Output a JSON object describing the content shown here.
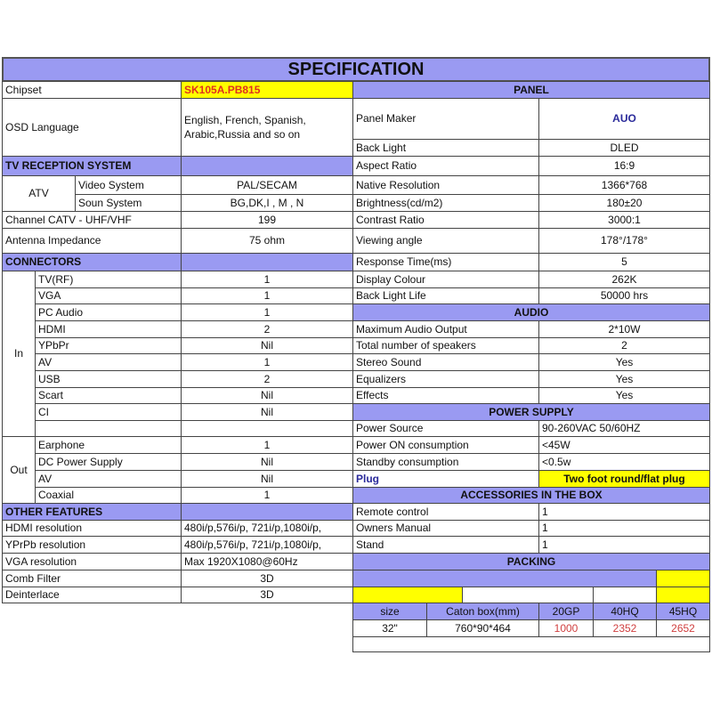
{
  "title": "SPECIFICATION",
  "colors": {
    "header": "#9a9af2",
    "highlight": "#ffff00",
    "chipset_text": "#e0301e",
    "accent_text": "#2a2a9a",
    "qty_text": "#d04040"
  },
  "left": {
    "chipset": {
      "label": "Chipset",
      "value": "SK105A.PB815"
    },
    "osd": {
      "label": "OSD Language",
      "value": "English, French, Spanish, Arabic,Russia and so on"
    },
    "tv_reception": "TV RECEPTION SYSTEM",
    "atv": {
      "label": "ATV",
      "video_label": "Video System",
      "video_value": "PAL/SECAM",
      "sound_label": "Soun System",
      "sound_value": "BG,DK,I , M , N"
    },
    "channel": {
      "label": "Channel CATV - UHF/VHF",
      "value": "199"
    },
    "antenna": {
      "label": "Antenna Impedance",
      "value": "75 ohm"
    },
    "connectors": "CONNECTORS",
    "in_label": "In",
    "in_rows": [
      [
        "TV(RF)",
        "1"
      ],
      [
        "VGA",
        "1"
      ],
      [
        "PC Audio",
        "1"
      ],
      [
        "HDMI",
        "2"
      ],
      [
        "YPbPr",
        "Nil"
      ],
      [
        "AV",
        "1"
      ],
      [
        "USB",
        "2"
      ],
      [
        "Scart",
        "Nil"
      ],
      [
        "CI",
        "Nil"
      ]
    ],
    "out_label": "Out",
    "out_rows": [
      [
        "Earphone",
        "1"
      ],
      [
        "DC Power Supply",
        "Nil"
      ],
      [
        "AV",
        "Nil"
      ],
      [
        "Coaxial",
        "1"
      ]
    ],
    "other_features": "OTHER FEATURES",
    "other_rows": [
      [
        "HDMI resolution",
        "480i/p,576i/p, 721i/p,1080i/p,"
      ],
      [
        "YPrPb resolution",
        "480i/p,576i/p, 721i/p,1080i/p,"
      ],
      [
        "VGA resolution",
        "Max 1920X1080@60Hz"
      ],
      [
        "Comb Filter",
        "3D"
      ],
      [
        "Deinterlace",
        "3D"
      ]
    ]
  },
  "right": {
    "panel": "PANEL",
    "panel_rows": [
      [
        "Panel Maker",
        "AUO"
      ],
      [
        "Back Light",
        "DLED"
      ],
      [
        "Aspect Ratio",
        "16:9"
      ],
      [
        "Native Resolution",
        "1366*768"
      ],
      [
        "Brightness(cd/m2)",
        "180±20"
      ],
      [
        "Contrast Ratio",
        "3000:1"
      ],
      [
        "Viewing angle",
        "178°/178°"
      ],
      [
        "Response Time(ms)",
        "5"
      ],
      [
        "Display Colour",
        "262K"
      ],
      [
        "Back Light Life",
        "50000 hrs"
      ]
    ],
    "audio": "AUDIO",
    "audio_rows": [
      [
        "Maximum Audio Output",
        "2*10W"
      ],
      [
        "Total number of speakers",
        "2"
      ],
      [
        "Stereo Sound",
        "Yes"
      ],
      [
        "Equalizers",
        "Yes"
      ],
      [
        "Effects",
        "Yes"
      ]
    ],
    "power": "POWER SUPPLY",
    "power_rows": [
      [
        "Power Source",
        "90-260VAC 50/60HZ"
      ],
      [
        "Power ON consumption",
        "<45W"
      ],
      [
        "Standby consumption",
        "<0.5w"
      ],
      [
        "Plug",
        "Two foot round/flat plug"
      ]
    ],
    "accessories": "ACCESSORIES IN THE BOX",
    "accessory_rows": [
      [
        "Remote control",
        "1"
      ],
      [
        "Owners Manual",
        "1"
      ],
      [
        "Stand",
        "1"
      ]
    ],
    "packing": "PACKING",
    "packing_headers": [
      "size",
      "Caton box(mm)",
      "20GP",
      "40HQ",
      "45HQ"
    ],
    "packing_row": [
      "32\"",
      "760*90*464",
      "1000",
      "2352",
      "2652"
    ]
  }
}
